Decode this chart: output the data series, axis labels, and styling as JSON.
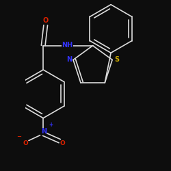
{
  "bg_color": "#0d0d0d",
  "bond_color": "#dcdcdc",
  "N_color": "#3333ff",
  "S_color": "#ccaa00",
  "O_color": "#dd2200",
  "font_size": 7.0,
  "bond_lw": 1.2,
  "figsize": [
    2.5,
    2.5
  ],
  "dpi": 100,
  "xlim": [
    -2.5,
    2.5
  ],
  "ylim": [
    -3.8,
    3.2
  ]
}
